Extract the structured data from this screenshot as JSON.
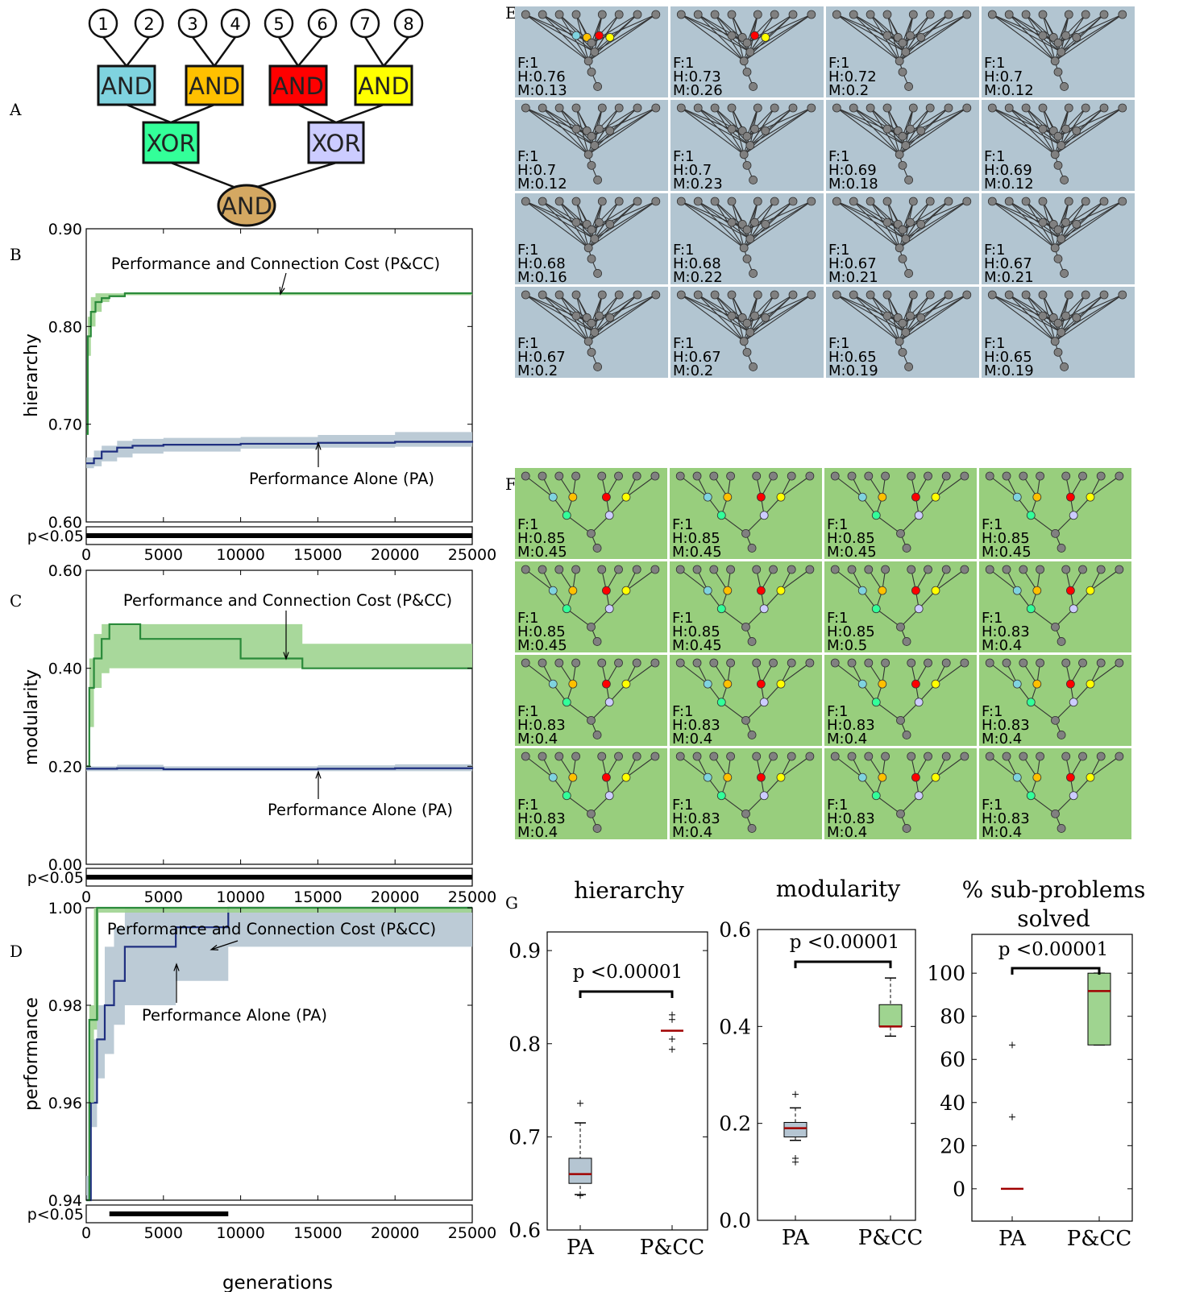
{
  "panel_letters": [
    "A",
    "B",
    "C",
    "D",
    "E",
    "F",
    "G"
  ],
  "colors": {
    "and_cyan": "#7fd3df",
    "and_orange": "#ffc000",
    "and_red": "#ff0000",
    "and_yellow": "#ffff00",
    "xor_green": "#33ff99",
    "xor_lavender": "#ccccff",
    "and_root": "#d4a862",
    "pa_line": "#1f2f80",
    "pa_band": "#b5c5d2",
    "pcc_line": "#2a8a3a",
    "pcc_band": "#9fd490",
    "median": "#a00000",
    "netE_bg": "#b2c5d1",
    "netF_bg": "#98ce7d",
    "node_gray": "#808080"
  },
  "diagram": {
    "inputs": [
      "1",
      "2",
      "3",
      "4",
      "5",
      "6",
      "7",
      "8"
    ],
    "and_gates": [
      "AND",
      "AND",
      "AND",
      "AND"
    ],
    "xor_gates": [
      "XOR",
      "XOR"
    ],
    "root": "AND"
  },
  "chart_data": [
    {
      "id": "B",
      "type": "line",
      "xlabel": "",
      "ylabel": "hierarchy",
      "xlim": [
        0,
        25000
      ],
      "ylim": [
        0.6,
        0.9
      ],
      "yticks": [
        "0.60",
        "0.70",
        "0.80",
        "0.90"
      ],
      "xticks": [
        "0",
        "5000",
        "10000",
        "15000",
        "20000",
        "25000"
      ],
      "sig_label": "p<0.05",
      "sig_ranges": [
        [
          0,
          25000
        ]
      ],
      "annotations": [
        "Performance and Connection Cost (P&CC)",
        "Performance Alone (PA)"
      ],
      "series": [
        {
          "name": "P&CC",
          "x": [
            0,
            100,
            300,
            600,
            1000,
            1500,
            2500,
            25000
          ],
          "y": [
            0.69,
            0.79,
            0.815,
            0.825,
            0.829,
            0.831,
            0.834,
            0.834
          ],
          "lo": [
            0.69,
            0.77,
            0.8,
            0.815,
            0.825,
            0.83,
            0.832,
            0.833
          ],
          "hi": [
            0.69,
            0.81,
            0.83,
            0.834,
            0.834,
            0.834,
            0.835,
            0.836
          ]
        },
        {
          "name": "PA",
          "x": [
            0,
            500,
            1000,
            2000,
            3000,
            5000,
            10000,
            15000,
            20000,
            25000
          ],
          "y": [
            0.66,
            0.665,
            0.672,
            0.676,
            0.678,
            0.679,
            0.68,
            0.681,
            0.682,
            0.683
          ],
          "lo": [
            0.655,
            0.657,
            0.662,
            0.666,
            0.67,
            0.672,
            0.675,
            0.676,
            0.677,
            0.678
          ],
          "hi": [
            0.666,
            0.673,
            0.678,
            0.683,
            0.685,
            0.686,
            0.687,
            0.689,
            0.692,
            0.699
          ]
        }
      ]
    },
    {
      "id": "C",
      "type": "line",
      "xlabel": "",
      "ylabel": "modularity",
      "xlim": [
        0,
        25000
      ],
      "ylim": [
        0,
        0.6
      ],
      "yticks": [
        "0.00",
        "0.20",
        "0.40",
        "0.60"
      ],
      "xticks": [
        "0",
        "5000",
        "10000",
        "15000",
        "20000",
        "25000"
      ],
      "sig_label": "p<0.05",
      "sig_ranges": [
        [
          0,
          25000
        ]
      ],
      "annotations": [
        "Performance and Connection Cost (P&CC)",
        "Performance Alone (PA)"
      ],
      "series": [
        {
          "name": "P&CC",
          "x": [
            0,
            200,
            500,
            1000,
            1500,
            3500,
            8000,
            10000,
            14000,
            25000
          ],
          "y": [
            0.2,
            0.36,
            0.42,
            0.46,
            0.49,
            0.46,
            0.46,
            0.42,
            0.4,
            0.4
          ],
          "lo": [
            0.2,
            0.28,
            0.36,
            0.39,
            0.4,
            0.4,
            0.4,
            0.4,
            0.4,
            0.4
          ],
          "hi": [
            0.2,
            0.42,
            0.47,
            0.49,
            0.49,
            0.49,
            0.49,
            0.49,
            0.45,
            0.45
          ]
        },
        {
          "name": "PA",
          "x": [
            0,
            2000,
            5000,
            10000,
            15000,
            20000,
            25000
          ],
          "y": [
            0.195,
            0.196,
            0.194,
            0.194,
            0.195,
            0.196,
            0.195
          ],
          "lo": [
            0.19,
            0.19,
            0.19,
            0.19,
            0.19,
            0.19,
            0.19
          ],
          "hi": [
            0.2,
            0.203,
            0.2,
            0.2,
            0.202,
            0.204,
            0.204
          ]
        }
      ]
    },
    {
      "id": "D",
      "type": "line",
      "xlabel": "generations",
      "ylabel": "performance",
      "xlim": [
        0,
        25000
      ],
      "ylim": [
        0.94,
        1.0
      ],
      "yticks": [
        "0.94",
        "0.96",
        "0.98",
        "1.00"
      ],
      "xticks": [
        "0",
        "5000",
        "10000",
        "15000",
        "20000",
        "25000"
      ],
      "sig_label": "p<0.05",
      "sig_ranges": [
        [
          1500,
          9200
        ]
      ],
      "annotations": [
        "Performance and Connection Cost (P&CC)",
        "Performance Alone (PA)"
      ],
      "series": [
        {
          "name": "P&CC",
          "x": [
            0,
            200,
            500,
            700,
            800,
            25000
          ],
          "y": [
            0.94,
            0.977,
            0.977,
            1.0,
            1.0,
            1.0
          ],
          "lo": [
            0.94,
            0.96,
            0.975,
            0.977,
            0.999,
            1.0
          ],
          "hi": [
            0.94,
            0.98,
            1.0,
            1.0,
            1.0,
            1.0
          ]
        },
        {
          "name": "PA",
          "x": [
            0,
            300,
            700,
            1200,
            1800,
            2500,
            5800,
            9200,
            25000
          ],
          "y": [
            0.94,
            0.96,
            0.973,
            0.98,
            0.985,
            0.992,
            0.996,
            1.0,
            1.0
          ],
          "lo": [
            0.94,
            0.955,
            0.965,
            0.97,
            0.976,
            0.98,
            0.985,
            0.992,
            0.996
          ],
          "hi": [
            0.945,
            0.973,
            0.98,
            0.992,
            0.996,
            1.0,
            1.0,
            1.0,
            1.0
          ]
        }
      ]
    },
    {
      "id": "G1",
      "type": "box",
      "title": "hierarchy",
      "categories": [
        "PA",
        "P&CC"
      ],
      "ylim": [
        0.6,
        0.92
      ],
      "yticks": [
        "0.6",
        "0.7",
        "0.8",
        "0.9"
      ],
      "pvalue": "p <0.00001",
      "boxes": [
        {
          "q1": 0.65,
          "median": 0.66,
          "q3": 0.677,
          "whislo": 0.638,
          "whishi": 0.715,
          "fliers": [
            0.637,
            0.736
          ]
        },
        {
          "q1": 0.814,
          "median": 0.814,
          "q3": 0.814,
          "whislo": 0.814,
          "whishi": 0.814,
          "fliers": [
            0.794,
            0.805,
            0.826,
            0.831
          ]
        }
      ]
    },
    {
      "id": "G2",
      "type": "box",
      "title": "modularity",
      "categories": [
        "PA",
        "P&CC"
      ],
      "ylim": [
        0,
        0.6
      ],
      "yticks": [
        "0.0",
        "0.2",
        "0.4",
        "0.6"
      ],
      "pvalue": "p <0.00001",
      "boxes": [
        {
          "q1": 0.172,
          "median": 0.19,
          "q3": 0.202,
          "whislo": 0.165,
          "whishi": 0.232,
          "fliers": [
            0.12,
            0.128,
            0.26
          ]
        },
        {
          "q1": 0.4,
          "median": 0.4,
          "q3": 0.445,
          "whislo": 0.38,
          "whishi": 0.5,
          "fliers": []
        }
      ]
    },
    {
      "id": "G3",
      "type": "box",
      "title": "% sub-problems solved",
      "categories": [
        "PA",
        "P&CC"
      ],
      "ylim": [
        -15,
        118
      ],
      "yticks": [
        "0",
        "20",
        "40",
        "60",
        "80",
        "100"
      ],
      "pvalue": "p <0.00001",
      "boxes": [
        {
          "q1": 0,
          "median": 0,
          "q3": 0,
          "whislo": 0,
          "whishi": 0,
          "fliers": [
            33.3,
            66.7
          ]
        },
        {
          "q1": 66.7,
          "median": 91.7,
          "q3": 100,
          "whislo": 66.7,
          "whishi": 100,
          "fliers": []
        }
      ]
    }
  ],
  "networks_E": [
    {
      "f": "F:1",
      "h": "H:0.76",
      "m": "M:0.13"
    },
    {
      "f": "F:1",
      "h": "H:0.73",
      "m": "M:0.26"
    },
    {
      "f": "F:1",
      "h": "H:0.72",
      "m": "M:0.2"
    },
    {
      "f": "F:1",
      "h": "H:0.7",
      "m": "M:0.12"
    },
    {
      "f": "F:1",
      "h": "H:0.7",
      "m": "M:0.12"
    },
    {
      "f": "F:1",
      "h": "H:0.7",
      "m": "M:0.23"
    },
    {
      "f": "F:1",
      "h": "H:0.69",
      "m": "M:0.18"
    },
    {
      "f": "F:1",
      "h": "H:0.69",
      "m": "M:0.12"
    },
    {
      "f": "F:1",
      "h": "H:0.68",
      "m": "M:0.16"
    },
    {
      "f": "F:1",
      "h": "H:0.68",
      "m": "M:0.22"
    },
    {
      "f": "F:1",
      "h": "H:0.67",
      "m": "M:0.21"
    },
    {
      "f": "F:1",
      "h": "H:0.67",
      "m": "M:0.21"
    },
    {
      "f": "F:1",
      "h": "H:0.67",
      "m": "M:0.2"
    },
    {
      "f": "F:1",
      "h": "H:0.67",
      "m": "M:0.2"
    },
    {
      "f": "F:1",
      "h": "H:0.65",
      "m": "M:0.19"
    },
    {
      "f": "F:1",
      "h": "H:0.65",
      "m": "M:0.19"
    }
  ],
  "networks_F": [
    {
      "f": "F:1",
      "h": "H:0.85",
      "m": "M:0.45"
    },
    {
      "f": "F:1",
      "h": "H:0.85",
      "m": "M:0.45"
    },
    {
      "f": "F:1",
      "h": "H:0.85",
      "m": "M:0.45"
    },
    {
      "f": "F:1",
      "h": "H:0.85",
      "m": "M:0.45"
    },
    {
      "f": "F:1",
      "h": "H:0.85",
      "m": "M:0.45"
    },
    {
      "f": "F:1",
      "h": "H:0.85",
      "m": "M:0.45"
    },
    {
      "f": "F:1",
      "h": "H:0.85",
      "m": "M:0.5"
    },
    {
      "f": "F:1",
      "h": "H:0.83",
      "m": "M:0.4"
    },
    {
      "f": "F:1",
      "h": "H:0.83",
      "m": "M:0.4"
    },
    {
      "f": "F:1",
      "h": "H:0.83",
      "m": "M:0.4"
    },
    {
      "f": "F:1",
      "h": "H:0.83",
      "m": "M:0.4"
    },
    {
      "f": "F:1",
      "h": "H:0.83",
      "m": "M:0.4"
    },
    {
      "f": "F:1",
      "h": "H:0.83",
      "m": "M:0.4"
    },
    {
      "f": "F:1",
      "h": "H:0.83",
      "m": "M:0.4"
    },
    {
      "f": "F:1",
      "h": "H:0.83",
      "m": "M:0.4"
    },
    {
      "f": "F:1",
      "h": "H:0.83",
      "m": "M:0.4"
    }
  ]
}
